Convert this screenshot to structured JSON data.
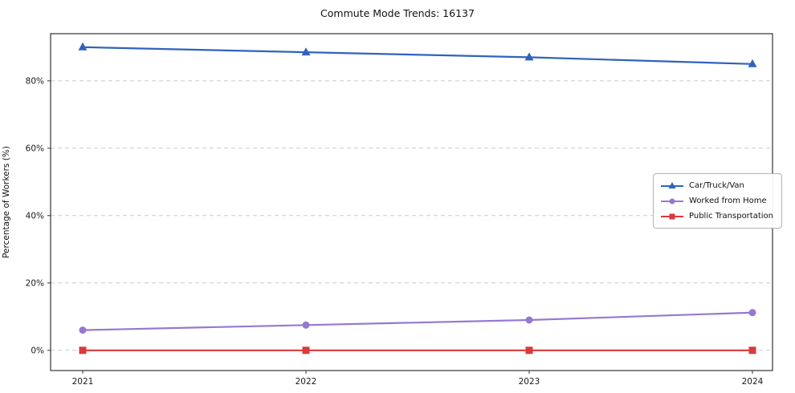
{
  "chart_data": {
    "type": "line",
    "title": "Commute Mode Trends: 16137",
    "xlabel": "",
    "ylabel": "Percentage of Workers (%)",
    "categories": [
      "2021",
      "2022",
      "2023",
      "2024"
    ],
    "yticks": [
      0,
      20,
      40,
      60,
      80
    ],
    "yticklabels": [
      "0%",
      "20%",
      "40%",
      "60%",
      "80%"
    ],
    "ylim": [
      -6,
      94
    ],
    "grid": "horizontal-dashed",
    "legend_position": "center-right",
    "series": [
      {
        "name": "Car/Truck/Van",
        "color": "#2f63be",
        "marker": "triangle",
        "values": [
          90.0,
          88.5,
          87.0,
          85.0
        ]
      },
      {
        "name": "Worked from Home",
        "color": "#9678d1",
        "marker": "circle",
        "values": [
          6.0,
          7.5,
          9.0,
          11.2
        ]
      },
      {
        "name": "Public Transportation",
        "color": "#d93a3a",
        "marker": "square",
        "values": [
          0.0,
          0.0,
          0.0,
          0.0
        ]
      }
    ]
  }
}
